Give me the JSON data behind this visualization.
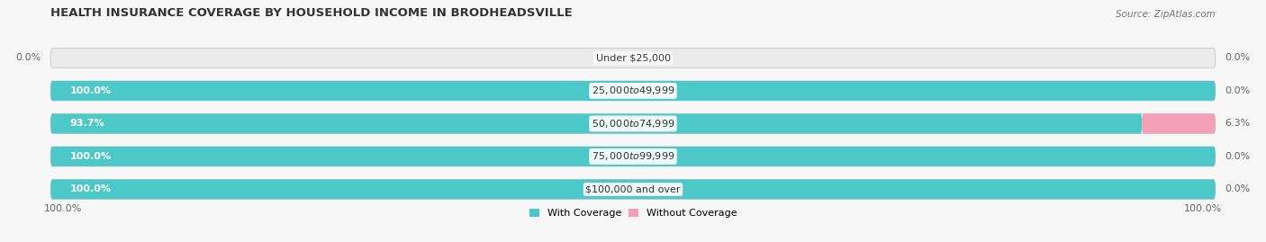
{
  "title": "HEALTH INSURANCE COVERAGE BY HOUSEHOLD INCOME IN BRODHEADSVILLE",
  "source": "Source: ZipAtlas.com",
  "categories": [
    "Under $25,000",
    "$25,000 to $49,999",
    "$50,000 to $74,999",
    "$75,000 to $99,999",
    "$100,000 and over"
  ],
  "with_coverage": [
    0.0,
    100.0,
    93.7,
    100.0,
    100.0
  ],
  "without_coverage": [
    0.0,
    0.0,
    6.3,
    0.0,
    0.0
  ],
  "color_with": "#4dc8c8",
  "color_without": "#f4a0b8",
  "bg_bar_color": "#ebebeb",
  "fig_bg_color": "#f7f7f7",
  "title_fontsize": 9.5,
  "label_fontsize": 8.0,
  "category_fontsize": 8.0,
  "source_fontsize": 7.5,
  "legend_fontsize": 8.0,
  "left_pct_label": "100.0%",
  "right_pct_label": "100.0%"
}
